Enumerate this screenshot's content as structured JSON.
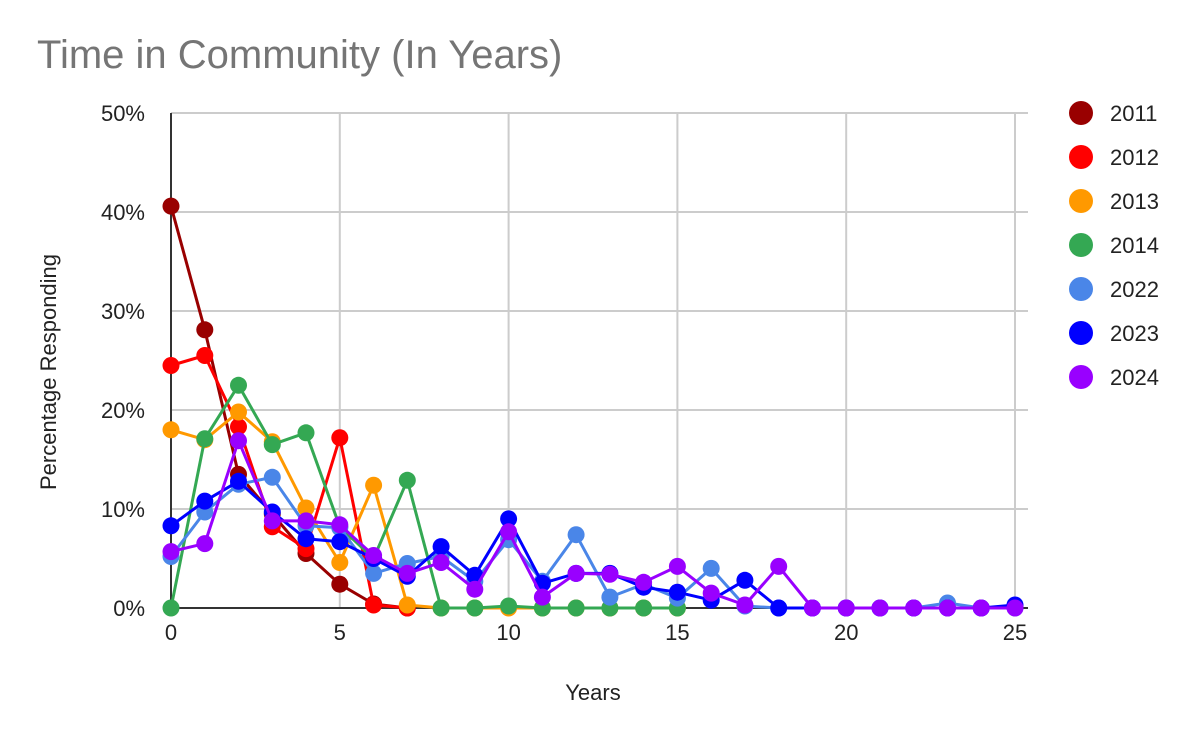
{
  "chart_data": {
    "type": "line",
    "title": "Time in Community (In Years)",
    "xlabel": "Years",
    "ylabel": "Percentage Responding",
    "xlim": [
      0,
      25
    ],
    "ylim": [
      0,
      50
    ],
    "x_ticks": [
      {
        "value": 0,
        "label": "0"
      },
      {
        "value": 5,
        "label": "5"
      },
      {
        "value": 10,
        "label": "10"
      },
      {
        "value": 15,
        "label": "15"
      },
      {
        "value": 20,
        "label": "20"
      },
      {
        "value": 25,
        "label": "25"
      }
    ],
    "y_ticks": [
      {
        "value": 0,
        "label": "0%"
      },
      {
        "value": 10,
        "label": "10%"
      },
      {
        "value": 20,
        "label": "20%"
      },
      {
        "value": 30,
        "label": "30%"
      },
      {
        "value": 40,
        "label": "40%"
      },
      {
        "value": 50,
        "label": "50%"
      }
    ],
    "grid": true,
    "legend_position": "right",
    "series": [
      {
        "name": "2011",
        "color": "#990000",
        "x": [
          0,
          1,
          2,
          3,
          4,
          5,
          6,
          7
        ],
        "y": [
          40.6,
          28.1,
          13.5,
          9.5,
          5.5,
          2.4,
          0.4,
          0
        ]
      },
      {
        "name": "2012",
        "color": "#ff0000",
        "x": [
          0,
          1,
          2,
          3,
          4,
          5,
          6,
          7
        ],
        "y": [
          24.5,
          25.5,
          18.3,
          8.2,
          6.0,
          17.2,
          0.3,
          0
        ]
      },
      {
        "name": "2013",
        "color": "#ff9900",
        "x": [
          0,
          1,
          2,
          3,
          4,
          5,
          6,
          7,
          8,
          9,
          10,
          11,
          12,
          13,
          14,
          15
        ],
        "y": [
          18.0,
          17.0,
          19.8,
          16.8,
          10.1,
          4.6,
          12.4,
          0.3,
          0,
          0,
          0,
          0,
          0,
          0,
          0,
          0
        ]
      },
      {
        "name": "2014",
        "color": "#34a853",
        "x": [
          0,
          1,
          2,
          3,
          4,
          5,
          6,
          7,
          8,
          9,
          10,
          11,
          12,
          13,
          14,
          15
        ],
        "y": [
          0,
          17.1,
          22.5,
          16.5,
          17.7,
          8.2,
          5.0,
          12.9,
          0,
          0,
          0.2,
          0,
          0,
          0,
          0,
          0
        ]
      },
      {
        "name": "2022",
        "color": "#4a86e8",
        "x": [
          0,
          1,
          2,
          3,
          4,
          5,
          6,
          7,
          8,
          9,
          10,
          11,
          12,
          13,
          14,
          15,
          16,
          17,
          18,
          19,
          20,
          21,
          22,
          23,
          24,
          25
        ],
        "y": [
          5.2,
          9.7,
          12.5,
          13.2,
          8.3,
          8.1,
          3.5,
          4.5,
          5.2,
          2.7,
          6.9,
          2.7,
          7.4,
          1.1,
          2.4,
          1.0,
          4.0,
          0.2,
          0,
          0,
          0,
          0,
          0,
          0.5,
          0,
          0
        ]
      },
      {
        "name": "2023",
        "color": "#0000ff",
        "x": [
          0,
          1,
          2,
          3,
          4,
          5,
          6,
          7,
          8,
          9,
          10,
          11,
          12,
          13,
          14,
          15,
          16,
          17,
          18,
          19,
          20,
          21,
          22,
          23,
          24,
          25
        ],
        "y": [
          8.3,
          10.8,
          12.8,
          9.7,
          7.0,
          6.7,
          5.0,
          3.2,
          6.2,
          3.3,
          9.0,
          2.5,
          3.5,
          3.5,
          2.1,
          1.6,
          0.8,
          2.8,
          0,
          0,
          0,
          0,
          0,
          0,
          0,
          0.3
        ]
      },
      {
        "name": "2024",
        "color": "#9900ff",
        "x": [
          0,
          1,
          2,
          3,
          4,
          5,
          6,
          7,
          8,
          9,
          10,
          11,
          12,
          13,
          14,
          15,
          16,
          17,
          18,
          19,
          20,
          21,
          22,
          23,
          24,
          25
        ],
        "y": [
          5.7,
          6.5,
          16.9,
          8.8,
          8.8,
          8.4,
          5.3,
          3.5,
          4.6,
          1.9,
          7.7,
          1.1,
          3.5,
          3.4,
          2.6,
          4.2,
          1.5,
          0.3,
          4.2,
          0,
          0,
          0,
          0,
          0,
          0,
          0
        ]
      }
    ]
  }
}
